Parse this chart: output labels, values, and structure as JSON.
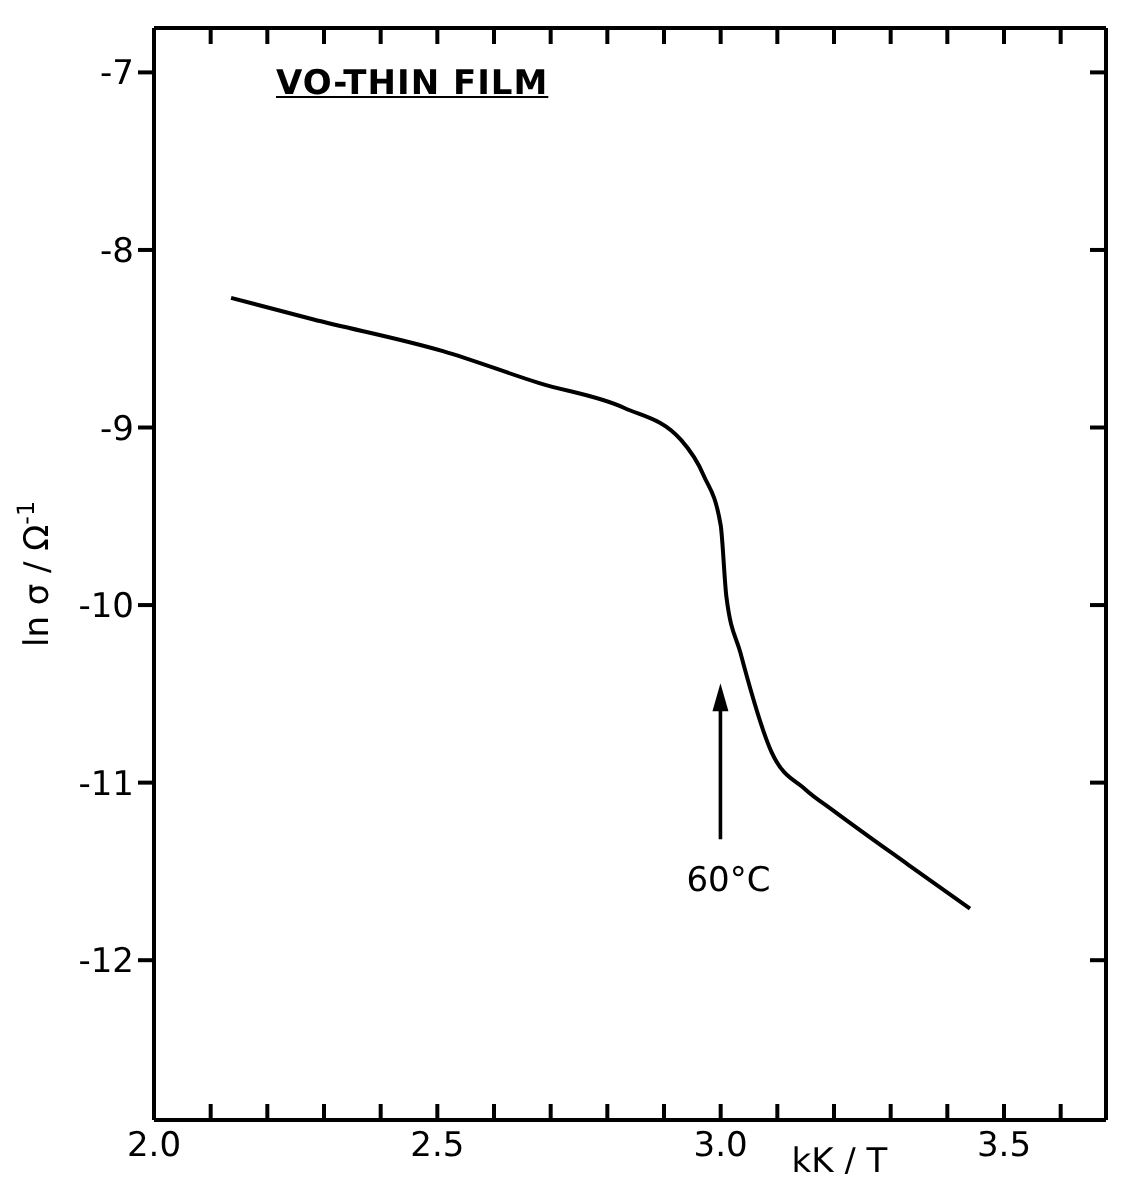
{
  "chart_data": {
    "type": "line",
    "title": "VO-THIN FILM",
    "xlabel": "kK / T",
    "ylabel": "ln σ / Ω$^{-1}$",
    "x": [
      2.136,
      2.28,
      2.51,
      2.68,
      2.83,
      2.93,
      2.97,
      3.0,
      3.01,
      3.035,
      3.09,
      3.15,
      3.2,
      3.33,
      3.44
    ],
    "series": [
      {
        "color": "#000000",
        "values": [
          -8.27,
          -8.39,
          -8.57,
          -8.75,
          -8.89,
          -9.07,
          -9.27,
          -9.55,
          -9.95,
          -10.27,
          -10.83,
          -11.04,
          -11.16,
          -11.46,
          -11.71
        ]
      }
    ],
    "xlim": [
      2.0,
      3.68
    ],
    "ylim": [
      -12.9,
      -6.75
    ],
    "xticks": [
      {
        "value": 2.0,
        "label": "2.0"
      },
      {
        "value": 2.1,
        "label": null
      },
      {
        "value": 2.2,
        "label": null
      },
      {
        "value": 2.3,
        "label": null
      },
      {
        "value": 2.4,
        "label": null
      },
      {
        "value": 2.5,
        "label": "2.5"
      },
      {
        "value": 2.6,
        "label": null
      },
      {
        "value": 2.7,
        "label": null
      },
      {
        "value": 2.8,
        "label": null
      },
      {
        "value": 2.9,
        "label": null
      },
      {
        "value": 3.0,
        "label": "3.0"
      },
      {
        "value": 3.1,
        "label": null
      },
      {
        "value": 3.2,
        "label": null
      },
      {
        "value": 3.3,
        "label": null
      },
      {
        "value": 3.4,
        "label": null
      },
      {
        "value": 3.5,
        "label": "3.5"
      },
      {
        "value": 3.6,
        "label": null
      }
    ],
    "yticks": [
      -7,
      -8,
      -9,
      -10,
      -11,
      -12
    ],
    "annotations": [
      "60°C"
    ],
    "grid": false,
    "legend": false,
    "marker": "none",
    "line_style": "solid"
  }
}
